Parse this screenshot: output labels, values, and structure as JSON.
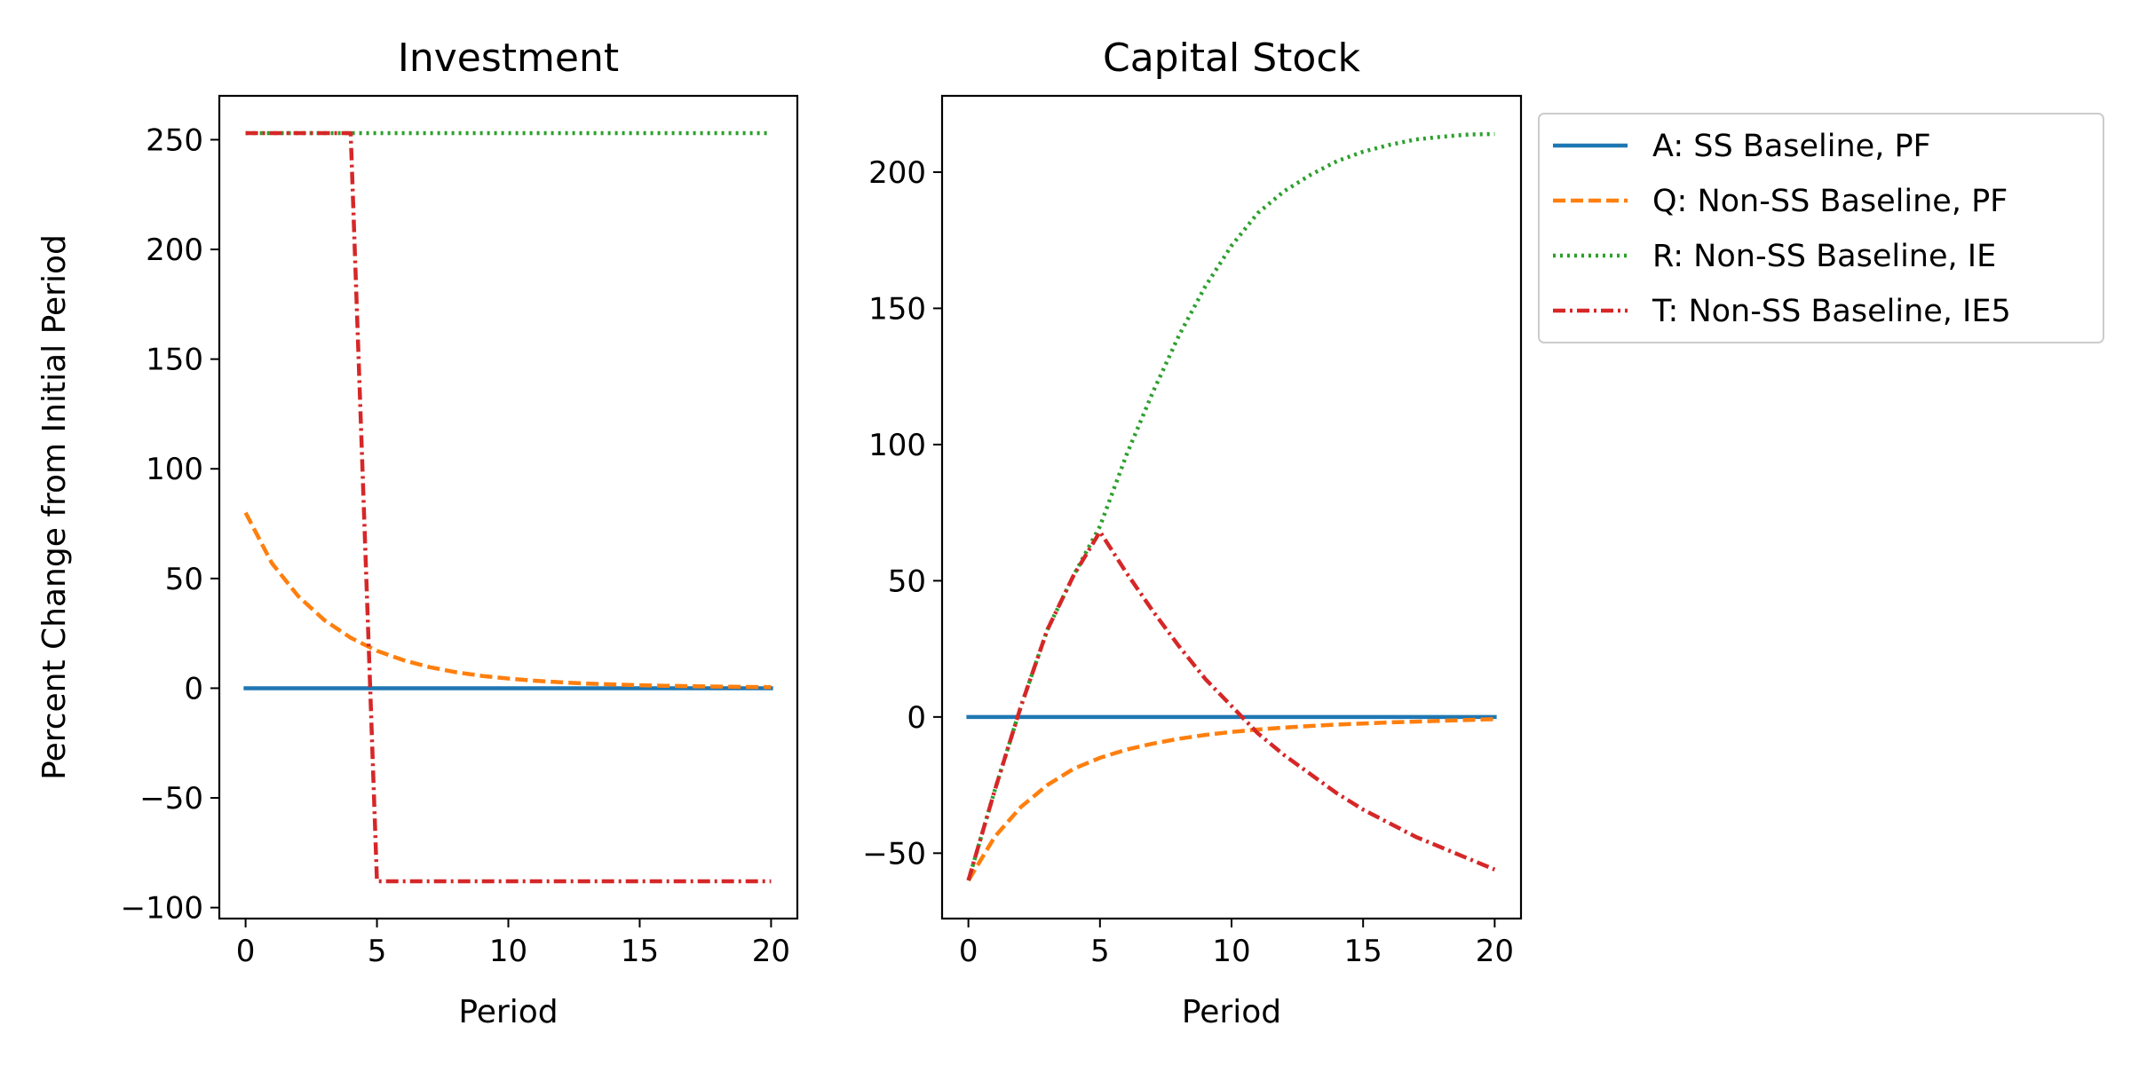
{
  "chart_data": [
    {
      "type": "line",
      "title": "Investment",
      "xlabel": "Period",
      "ylabel": "Percent Change from Initial Period",
      "xlim": [
        -1,
        21
      ],
      "ylim": [
        -105,
        270
      ],
      "xticks": [
        0,
        5,
        10,
        15,
        20
      ],
      "xtick_labels": [
        "0",
        "5",
        "10",
        "15",
        "20"
      ],
      "yticks": [
        -100,
        -50,
        0,
        50,
        100,
        150,
        200,
        250
      ],
      "ytick_labels": [
        "−100",
        "−50",
        "0",
        "50",
        "100",
        "150",
        "200",
        "250"
      ],
      "grid": false,
      "x": [
        0,
        1,
        2,
        3,
        4,
        5,
        6,
        7,
        8,
        9,
        10,
        11,
        12,
        13,
        14,
        15,
        16,
        17,
        18,
        19,
        20
      ],
      "series": [
        {
          "key": "A",
          "values": [
            0,
            0,
            0,
            0,
            0,
            0,
            0,
            0,
            0,
            0,
            0,
            0,
            0,
            0,
            0,
            0,
            0,
            0,
            0,
            0,
            0
          ]
        },
        {
          "key": "Q",
          "values": [
            80,
            57,
            42,
            31,
            23,
            17,
            12.8,
            9.6,
            7.3,
            5.6,
            4.4,
            3.4,
            2.7,
            2.1,
            1.7,
            1.35,
            1.1,
            0.9,
            0.75,
            0.6,
            0.5
          ]
        },
        {
          "key": "R",
          "values": [
            253,
            253,
            253,
            253,
            253,
            253,
            253,
            253,
            253,
            253,
            253,
            253,
            253,
            253,
            253,
            253,
            253,
            253,
            253,
            253,
            253
          ]
        },
        {
          "key": "T",
          "values": [
            253,
            253,
            253,
            253,
            253,
            -88,
            -88,
            -88,
            -88,
            -88,
            -88,
            -88,
            -88,
            -88,
            -88,
            -88,
            -88,
            -88,
            -88,
            -88,
            -88
          ]
        }
      ]
    },
    {
      "type": "line",
      "title": "Capital Stock",
      "xlabel": "Period",
      "ylabel": "",
      "xlim": [
        -1,
        21
      ],
      "ylim": [
        -74,
        228
      ],
      "xticks": [
        0,
        5,
        10,
        15,
        20
      ],
      "xtick_labels": [
        "0",
        "5",
        "10",
        "15",
        "20"
      ],
      "yticks": [
        -50,
        0,
        50,
        100,
        150,
        200
      ],
      "ytick_labels": [
        "−50",
        "0",
        "50",
        "100",
        "150",
        "200"
      ],
      "grid": false,
      "x": [
        0,
        1,
        2,
        3,
        4,
        5,
        6,
        7,
        8,
        9,
        10,
        11,
        12,
        13,
        14,
        15,
        16,
        17,
        18,
        19,
        20
      ],
      "series": [
        {
          "key": "A",
          "values": [
            0,
            0,
            0,
            0,
            0,
            0,
            0,
            0,
            0,
            0,
            0,
            0,
            0,
            0,
            0,
            0,
            0,
            0,
            0,
            0,
            0
          ]
        },
        {
          "key": "Q",
          "values": [
            -60,
            -44,
            -33,
            -25,
            -19,
            -15,
            -12,
            -9.8,
            -8,
            -6.6,
            -5.5,
            -4.6,
            -3.9,
            -3.3,
            -2.8,
            -2.4,
            -2.0,
            -1.7,
            -1.4,
            -1.1,
            -0.8
          ]
        },
        {
          "key": "R",
          "values": [
            -60,
            -27,
            4,
            32,
            52,
            70,
            96,
            119,
            140,
            158,
            173,
            185,
            193,
            199,
            204,
            207.5,
            210,
            212,
            213,
            213.8,
            214
          ]
        },
        {
          "key": "T",
          "values": [
            -60,
            -27,
            4,
            32,
            52,
            68,
            53,
            39,
            26,
            14,
            4,
            -6,
            -14,
            -21,
            -28,
            -34,
            -39,
            -44,
            -48,
            -52,
            -56
          ]
        }
      ]
    }
  ],
  "legend": {
    "placement": "outside-right",
    "entries": [
      {
        "key": "A",
        "label": "A: SS Baseline, PF",
        "color": "#1f77b4",
        "dash": "solid"
      },
      {
        "key": "Q",
        "label": "Q: Non-SS Baseline, PF",
        "color": "#ff7f0e",
        "dash": "dashed"
      },
      {
        "key": "R",
        "label": "R: Non-SS Baseline, IE",
        "color": "#2ca02c",
        "dash": "dotted"
      },
      {
        "key": "T",
        "label": "T: Non-SS Baseline, IE5",
        "color": "#d62728",
        "dash": "dashdot"
      }
    ]
  }
}
